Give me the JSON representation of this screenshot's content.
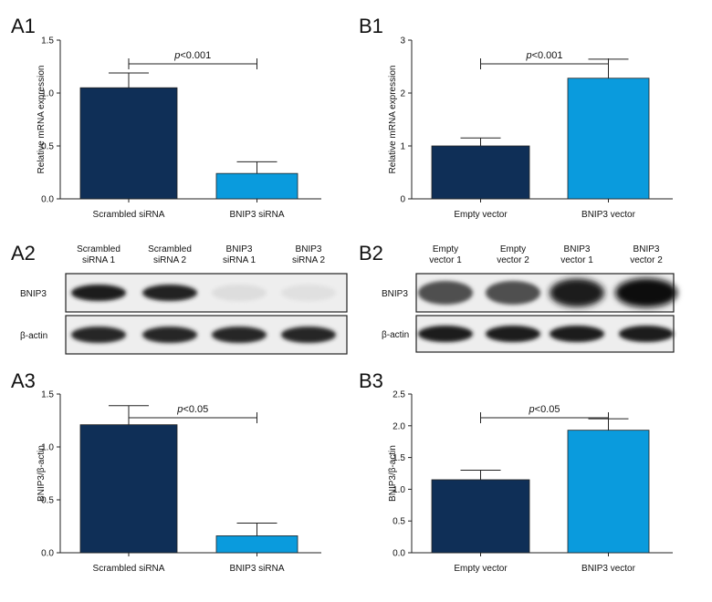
{
  "colors": {
    "dark": "#0f2f57",
    "light": "#0a9bdd",
    "axis": "#222222"
  },
  "chart_data": [
    {
      "panel": "A1",
      "type": "bar",
      "categories": [
        "Scrambled siRNA",
        "BNIP3 siRNA"
      ],
      "values": [
        1.05,
        0.24
      ],
      "errors": [
        0.14,
        0.11
      ],
      "ylabel": "Relative mRNA expression",
      "ylim": [
        0,
        1.5
      ],
      "yticks": [
        "0.0",
        "0.5",
        "1.0",
        "1.5"
      ],
      "tick_values": [
        0,
        0.5,
        1.0,
        1.5
      ],
      "significance": {
        "prefix": "p",
        "text": "<0.001"
      }
    },
    {
      "panel": "B1",
      "type": "bar",
      "categories": [
        "Empty vector",
        "BNIP3 vector"
      ],
      "values": [
        1.0,
        2.28
      ],
      "errors": [
        0.15,
        0.36
      ],
      "ylabel": "Relative mRNA expression",
      "ylim": [
        0,
        3
      ],
      "yticks": [
        "0",
        "1",
        "2",
        "3"
      ],
      "tick_values": [
        0,
        1,
        2,
        3
      ],
      "significance": {
        "prefix": "p",
        "text": "<0.001"
      }
    },
    {
      "panel": "A3",
      "type": "bar",
      "categories": [
        "Scrambled siRNA",
        "BNIP3 siRNA"
      ],
      "values": [
        1.21,
        0.16
      ],
      "errors": [
        0.18,
        0.12
      ],
      "ylabel": "BNIP3/β-actin",
      "ylim": [
        0,
        1.5
      ],
      "yticks": [
        "0.0",
        "0.5",
        "1.0",
        "1.5"
      ],
      "tick_values": [
        0,
        0.5,
        1.0,
        1.5
      ],
      "significance": {
        "prefix": "p",
        "text": "<0.05"
      }
    },
    {
      "panel": "B3",
      "type": "bar",
      "categories": [
        "Empty vector",
        "BNIP3 vector"
      ],
      "values": [
        1.15,
        1.93
      ],
      "errors": [
        0.15,
        0.18
      ],
      "ylabel": "BNIP3/β-actin",
      "ylim": [
        0,
        2.5
      ],
      "yticks": [
        "0.0",
        "0.5",
        "1.0",
        "1.5",
        "2.0",
        "2.5"
      ],
      "tick_values": [
        0,
        0.5,
        1.0,
        1.5,
        2.0,
        2.5
      ],
      "significance": {
        "prefix": "p",
        "text": "<0.05"
      }
    }
  ],
  "blots": [
    {
      "panel": "A2",
      "lanes": [
        [
          "Scrambled",
          "siRNA 1"
        ],
        [
          "Scrambled",
          "siRNA 2"
        ],
        [
          "BNIP3",
          "siRNA 1"
        ],
        [
          "BNIP3",
          "siRNA 2"
        ]
      ],
      "rows": [
        {
          "label": "BNIP3",
          "intensity": [
            0.95,
            0.92,
            0.04,
            0.03
          ]
        },
        {
          "label": "β-actin",
          "intensity": [
            0.9,
            0.9,
            0.9,
            0.9
          ]
        }
      ]
    },
    {
      "panel": "B2",
      "lanes": [
        [
          "Empty",
          "vector 1"
        ],
        [
          "Empty",
          "vector 2"
        ],
        [
          "BNIP3",
          "vector 1"
        ],
        [
          "BNIP3",
          "vector 2"
        ]
      ],
      "rows": [
        {
          "label": "BNIP3",
          "intensity": [
            0.7,
            0.7,
            0.95,
            1.0
          ]
        },
        {
          "label": "β-actin",
          "intensity": [
            0.95,
            0.95,
            0.95,
            0.95
          ]
        }
      ]
    }
  ]
}
